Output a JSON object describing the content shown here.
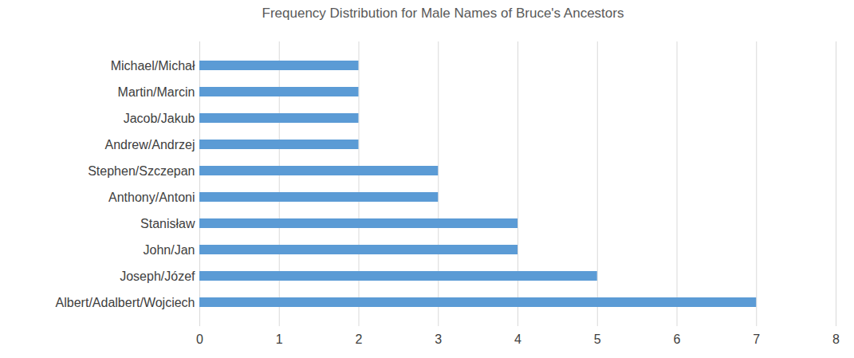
{
  "chart_data": {
    "type": "bar",
    "title": "Frequency Distribution for Male Names of Bruce's Ancestors",
    "orientation": "horizontal",
    "categories": [
      "Michael/Michał",
      "Martin/Marcin",
      "Jacob/Jakub",
      "Andrew/Andrzej",
      "Stephen/Szczepan",
      "Anthony/Antoni",
      "Stanisław",
      "John/Jan",
      "Joseph/Józef",
      "Albert/Adalbert/Wojciech"
    ],
    "values": [
      2,
      2,
      2,
      2,
      3,
      3,
      4,
      4,
      5,
      7
    ],
    "color": "#5B9BD5",
    "xlim": [
      0,
      8
    ],
    "xticks": [
      0,
      1,
      2,
      3,
      4,
      5,
      6,
      7,
      8
    ],
    "grid": true
  }
}
